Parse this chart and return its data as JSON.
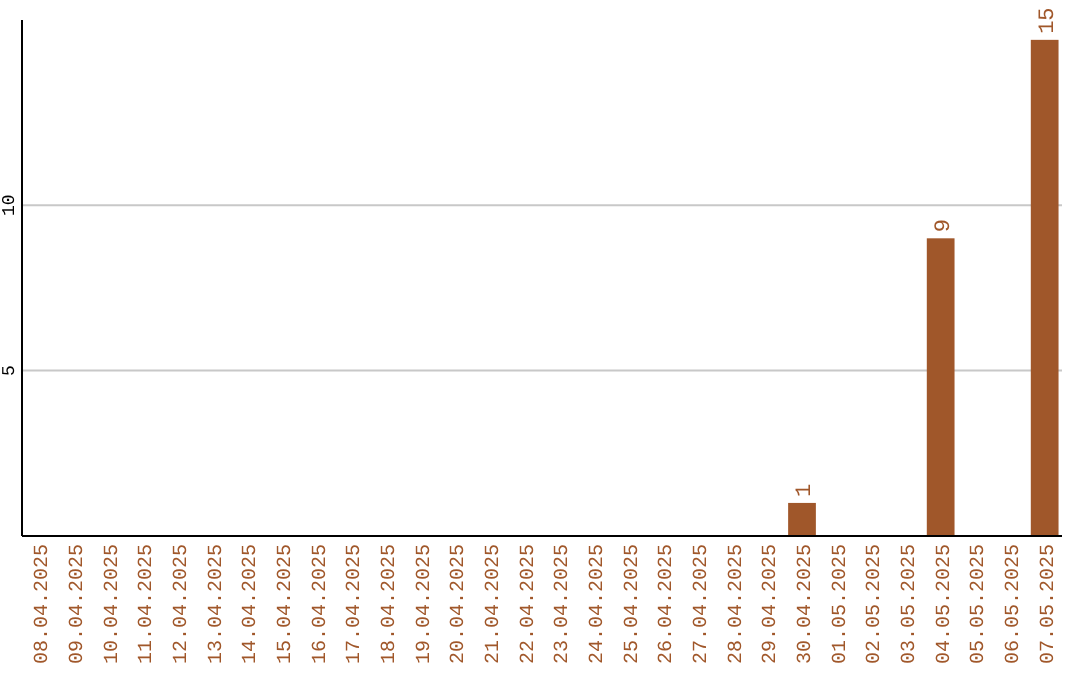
{
  "chart_data": {
    "type": "bar",
    "categories": [
      "08.04.2025",
      "09.04.2025",
      "10.04.2025",
      "11.04.2025",
      "12.04.2025",
      "13.04.2025",
      "14.04.2025",
      "15.04.2025",
      "16.04.2025",
      "17.04.2025",
      "18.04.2025",
      "19.04.2025",
      "20.04.2025",
      "21.04.2025",
      "22.04.2025",
      "23.04.2025",
      "24.04.2025",
      "25.04.2025",
      "26.04.2025",
      "27.04.2025",
      "28.04.2025",
      "29.04.2025",
      "30.04.2025",
      "01.05.2025",
      "02.05.2025",
      "03.05.2025",
      "04.05.2025",
      "05.05.2025",
      "06.05.2025",
      "07.05.2025"
    ],
    "values": [
      0,
      0,
      0,
      0,
      0,
      0,
      0,
      0,
      0,
      0,
      0,
      0,
      0,
      0,
      0,
      0,
      0,
      0,
      0,
      0,
      0,
      0,
      1,
      0,
      0,
      0,
      9,
      0,
      0,
      15
    ],
    "value_labels": [
      null,
      null,
      null,
      null,
      null,
      null,
      null,
      null,
      null,
      null,
      null,
      null,
      null,
      null,
      null,
      null,
      null,
      null,
      null,
      null,
      null,
      null,
      "1",
      null,
      null,
      null,
      "9",
      null,
      null,
      "15"
    ],
    "color": "#a0572a",
    "ylim": [
      0,
      15.6
    ],
    "yticks": [
      5,
      10
    ],
    "grid": "y"
  }
}
